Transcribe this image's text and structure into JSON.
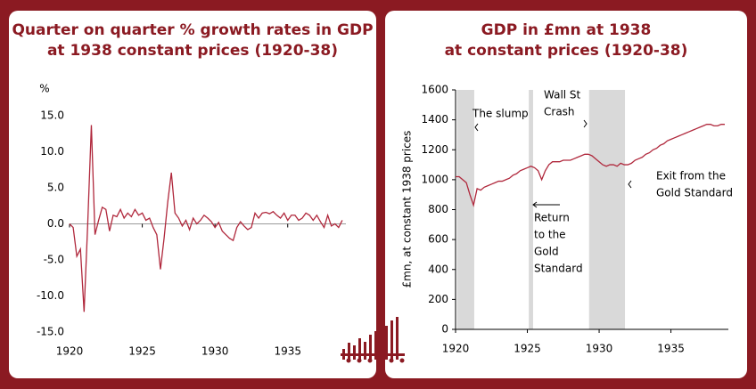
{
  "chart_data": [
    {
      "type": "line",
      "title": [
        "Quarter on quarter % growth rates in GDP",
        "at 1938 constant prices (1920-38)"
      ],
      "y_label": "%",
      "x": [
        1920,
        1920.25,
        1920.5,
        1920.75,
        1921,
        1921.25,
        1921.5,
        1921.75,
        1922,
        1922.25,
        1922.5,
        1922.75,
        1923,
        1923.25,
        1923.5,
        1923.75,
        1924,
        1924.25,
        1924.5,
        1924.75,
        1925,
        1925.25,
        1925.5,
        1925.75,
        1926,
        1926.25,
        1926.5,
        1926.75,
        1927,
        1927.25,
        1927.5,
        1927.75,
        1928,
        1928.25,
        1928.5,
        1928.75,
        1929,
        1929.25,
        1929.5,
        1929.75,
        1930,
        1930.25,
        1930.5,
        1930.75,
        1931,
        1931.25,
        1931.5,
        1931.75,
        1932,
        1932.25,
        1932.5,
        1932.75,
        1933,
        1933.25,
        1933.5,
        1933.75,
        1934,
        1934.25,
        1934.5,
        1934.75,
        1935,
        1935.25,
        1935.5,
        1935.75,
        1936,
        1936.25,
        1936.5,
        1936.75,
        1937,
        1937.25,
        1937.5,
        1937.75,
        1938,
        1938.25,
        1938.5,
        1938.75
      ],
      "series": [
        {
          "color": "#b0283c",
          "values": [
            0,
            -0.5,
            -4.5,
            -3.5,
            -12.2,
            0,
            13.7,
            -1.5,
            0.5,
            2.3,
            2.0,
            -1.0,
            1.2,
            1.0,
            2.0,
            0.8,
            1.5,
            1.0,
            2.0,
            1.2,
            1.5,
            0.5,
            0.8,
            -0.5,
            -1.5,
            -6.3,
            -2.0,
            3.0,
            7.1,
            1.5,
            0.8,
            -0.3,
            0.5,
            -0.8,
            0.8,
            0,
            0.5,
            1.2,
            0.8,
            0.3,
            -0.5,
            0.2,
            -1.0,
            -1.5,
            -2.0,
            -2.3,
            -0.5,
            0.3,
            -0.3,
            -0.8,
            -0.5,
            1.5,
            0.8,
            1.5,
            1.6,
            1.4,
            1.7,
            1.2,
            0.8,
            1.5,
            0.5,
            1.2,
            1.2,
            0.5,
            0.8,
            1.5,
            1.2,
            0.5,
            1.2,
            0.3,
            -0.5,
            1.2,
            -0.3,
            0,
            -0.5,
            0.5
          ]
        }
      ],
      "xlim": [
        1920,
        1939
      ],
      "xticks": [
        1920,
        1925,
        1930,
        1935
      ],
      "ylim": [
        -15,
        15
      ],
      "yticks": [
        {
          "value": 15,
          "label": "15.0"
        },
        {
          "value": 10,
          "label": "10.0"
        },
        {
          "value": 5,
          "label": "5.0"
        },
        {
          "value": 0,
          "label": "0.0"
        },
        {
          "value": -5,
          "label": "-5.0"
        },
        {
          "value": -10,
          "label": "-10.0"
        },
        {
          "value": -15,
          "label": "-15.0"
        }
      ]
    },
    {
      "type": "line",
      "title": [
        "GDP in £mn at 1938",
        "at constant prices (1920-38)"
      ],
      "y_label": "£mn, at constant 1938 prices",
      "x": [
        1920,
        1920.25,
        1920.5,
        1920.75,
        1921,
        1921.25,
        1921.5,
        1921.75,
        1922,
        1922.25,
        1922.5,
        1922.75,
        1923,
        1923.25,
        1923.5,
        1923.75,
        1924,
        1924.25,
        1924.5,
        1924.75,
        1925,
        1925.25,
        1925.5,
        1925.75,
        1926,
        1926.25,
        1926.5,
        1926.75,
        1927,
        1927.25,
        1927.5,
        1927.75,
        1928,
        1928.25,
        1928.5,
        1928.75,
        1929,
        1929.25,
        1929.5,
        1929.75,
        1930,
        1930.25,
        1930.5,
        1930.75,
        1931,
        1931.25,
        1931.5,
        1931.75,
        1932,
        1932.25,
        1932.5,
        1932.75,
        1933,
        1933.25,
        1933.5,
        1933.75,
        1934,
        1934.25,
        1934.5,
        1934.75,
        1935,
        1935.25,
        1935.5,
        1935.75,
        1936,
        1936.25,
        1936.5,
        1936.75,
        1937,
        1937.25,
        1937.5,
        1937.75,
        1938,
        1938.25,
        1938.5,
        1938.75
      ],
      "series": [
        {
          "color": "#b0283c",
          "values": [
            1020,
            1020,
            1000,
            980,
            900,
            830,
            940,
            930,
            950,
            960,
            970,
            980,
            990,
            990,
            1000,
            1010,
            1030,
            1040,
            1060,
            1070,
            1080,
            1090,
            1080,
            1060,
            1000,
            1060,
            1100,
            1120,
            1120,
            1120,
            1130,
            1130,
            1130,
            1140,
            1150,
            1160,
            1170,
            1170,
            1160,
            1140,
            1120,
            1100,
            1090,
            1100,
            1100,
            1090,
            1110,
            1100,
            1100,
            1110,
            1130,
            1140,
            1150,
            1170,
            1180,
            1200,
            1210,
            1230,
            1240,
            1260,
            1270,
            1280,
            1290,
            1300,
            1310,
            1320,
            1330,
            1340,
            1350,
            1360,
            1370,
            1370,
            1360,
            1360,
            1370,
            1370
          ]
        }
      ],
      "shaded": [
        [
          1920.1,
          1921.3
        ],
        [
          1925.1,
          1925.4
        ],
        [
          1929.3,
          1931.8
        ]
      ],
      "shade_color": "#d9d9d9",
      "annotations": [
        [
          "The slump"
        ],
        [
          "Wall St",
          "Crash"
        ],
        [
          "Return",
          "to the",
          "Gold",
          "Standard"
        ],
        [
          "Exit from the",
          "Gold Standard"
        ]
      ],
      "xlim": [
        1920,
        1939
      ],
      "xticks": [
        1920,
        1925,
        1930,
        1935
      ],
      "ylim": [
        0,
        1600
      ],
      "yticks": [
        0,
        200,
        400,
        600,
        800,
        1000,
        1200,
        1400,
        1600
      ]
    }
  ]
}
